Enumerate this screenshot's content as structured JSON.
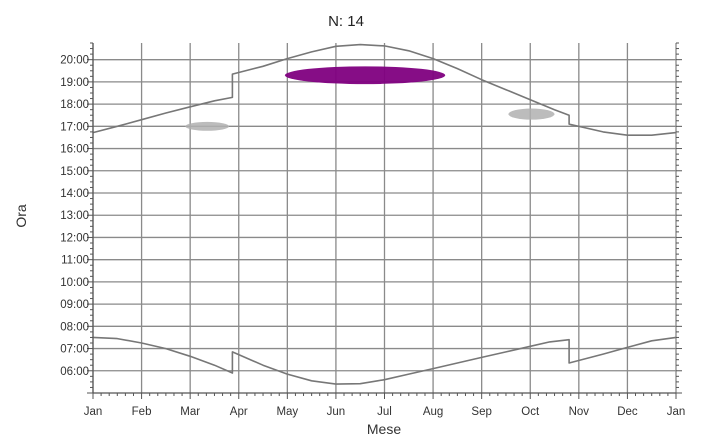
{
  "chart_data": {
    "type": "line",
    "title": "N: 14",
    "xlabel": "Mese",
    "ylabel": "Ora",
    "x_ticks": [
      "Jan",
      "Feb",
      "Mar",
      "Apr",
      "May",
      "Jun",
      "Jul",
      "Aug",
      "Sep",
      "Oct",
      "Nov",
      "Dec",
      "Jan"
    ],
    "y_ticks": [
      "06:00",
      "07:00",
      "08:00",
      "09:00",
      "10:00",
      "11:00",
      "12:00",
      "13:00",
      "14:00",
      "15:00",
      "16:00",
      "17:00",
      "18:00",
      "19:00",
      "20:00"
    ],
    "xlim": [
      0,
      12
    ],
    "ylim": [
      5.0,
      20.75
    ],
    "grid": true,
    "series": [
      {
        "role": "sunset",
        "color": "#777777",
        "points": [
          [
            0,
            16.72
          ],
          [
            0.5,
            17.0
          ],
          [
            1,
            17.3
          ],
          [
            1.5,
            17.6
          ],
          [
            2,
            17.88
          ],
          [
            2.5,
            18.15
          ],
          [
            2.87,
            18.3
          ],
          [
            2.87,
            19.35
          ],
          [
            3.5,
            19.7
          ],
          [
            4,
            20.05
          ],
          [
            4.5,
            20.35
          ],
          [
            5,
            20.6
          ],
          [
            5.5,
            20.68
          ],
          [
            6,
            20.62
          ],
          [
            6.5,
            20.4
          ],
          [
            7,
            20.05
          ],
          [
            7.5,
            19.6
          ],
          [
            8,
            19.1
          ],
          [
            8.5,
            18.65
          ],
          [
            9,
            18.2
          ],
          [
            9.5,
            17.75
          ],
          [
            9.8,
            17.5
          ],
          [
            9.8,
            17.1
          ],
          [
            10.5,
            16.75
          ],
          [
            11,
            16.6
          ],
          [
            11.5,
            16.6
          ],
          [
            12,
            16.72
          ]
        ]
      },
      {
        "role": "sunrise",
        "color": "#777777",
        "points": [
          [
            0,
            7.5
          ],
          [
            0.5,
            7.45
          ],
          [
            1,
            7.25
          ],
          [
            1.5,
            7.0
          ],
          [
            2,
            6.65
          ],
          [
            2.5,
            6.25
          ],
          [
            2.87,
            5.9
          ],
          [
            2.87,
            6.85
          ],
          [
            3.5,
            6.25
          ],
          [
            4,
            5.85
          ],
          [
            4.5,
            5.55
          ],
          [
            5,
            5.4
          ],
          [
            5.5,
            5.42
          ],
          [
            6,
            5.6
          ],
          [
            6.5,
            5.85
          ],
          [
            7,
            6.1
          ],
          [
            7.5,
            6.35
          ],
          [
            8,
            6.6
          ],
          [
            8.5,
            6.85
          ],
          [
            9,
            7.1
          ],
          [
            9.4,
            7.3
          ],
          [
            9.8,
            7.4
          ],
          [
            9.8,
            6.35
          ],
          [
            10.5,
            6.75
          ],
          [
            11,
            7.05
          ],
          [
            11.5,
            7.35
          ],
          [
            12,
            7.5
          ]
        ]
      }
    ],
    "events": [
      {
        "label": "",
        "color": "#800080",
        "x": [
          3.95,
          7.25
        ],
        "y": [
          18.9,
          19.7
        ]
      },
      {
        "label": "",
        "color": "#b0b0b0",
        "x": [
          1.9,
          2.8
        ],
        "y": [
          16.8,
          17.2
        ]
      },
      {
        "label": "",
        "color": "#b0b0b0",
        "x": [
          8.55,
          9.5
        ],
        "y": [
          17.3,
          17.8
        ]
      }
    ]
  }
}
